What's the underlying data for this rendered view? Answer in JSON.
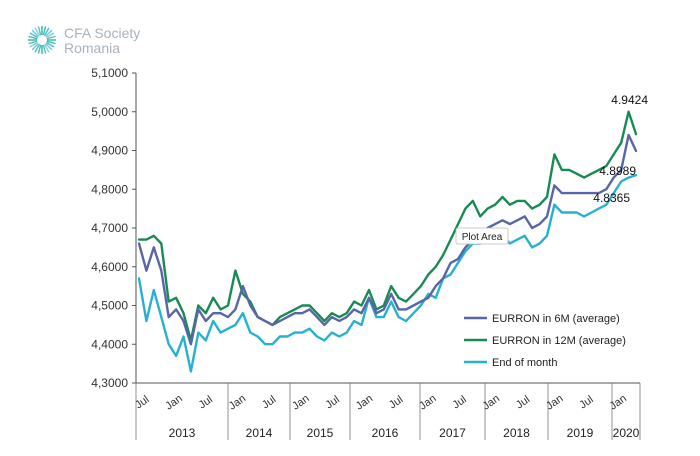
{
  "logo": {
    "line1": "CFA Society",
    "line2": "Romania"
  },
  "chart_data": {
    "type": "line",
    "title": "",
    "xlabel": "",
    "ylabel": "",
    "ylim": [
      4.3,
      5.1
    ],
    "y_ticks": [
      "4,3000",
      "4,4000",
      "4,5000",
      "4,6000",
      "4,7000",
      "4,8000",
      "4,9000",
      "5,0000",
      "5,1000"
    ],
    "month_ticks": [
      "Jul",
      "Jan",
      "Jul",
      "Jan",
      "Jul",
      "Jan",
      "Jul",
      "Jan",
      "Jul",
      "Jan",
      "Jul",
      "Jan",
      "Jul",
      "Jan",
      "Jul",
      "Jan"
    ],
    "year_labels": [
      "2013",
      "2014",
      "2015",
      "2016",
      "2017",
      "2018",
      "2019",
      "2020"
    ],
    "grid": false,
    "legend_position": "right",
    "tooltip": "Plot Area",
    "annotations": [
      "4.9424",
      "4.8989",
      "4.8365"
    ],
    "colors": {
      "s6m": "#5865a8",
      "s12m": "#1a8a55",
      "eom": "#27b1d0",
      "axis": "#555555"
    },
    "series": [
      {
        "name": "EURRON in 6M (average)",
        "color": "#5865a8",
        "values": [
          4.66,
          4.59,
          4.65,
          4.59,
          4.47,
          4.49,
          4.46,
          4.4,
          4.49,
          4.46,
          4.48,
          4.48,
          4.47,
          4.49,
          4.55,
          4.5,
          4.47,
          4.46,
          4.45,
          4.46,
          4.47,
          4.48,
          4.48,
          4.49,
          4.47,
          4.45,
          4.47,
          4.46,
          4.47,
          4.49,
          4.48,
          4.52,
          4.48,
          4.49,
          4.53,
          4.49,
          4.49,
          4.5,
          4.51,
          4.52,
          4.55,
          4.57,
          4.61,
          4.62,
          4.65,
          4.67,
          4.68,
          4.7,
          4.71,
          4.72,
          4.71,
          4.72,
          4.73,
          4.7,
          4.71,
          4.73,
          4.81,
          4.79,
          4.79,
          4.79,
          4.79,
          4.79,
          4.79,
          4.8,
          4.83,
          4.85,
          4.94,
          4.8989
        ]
      },
      {
        "name": "EURRON in 12M (average)",
        "color": "#1a8a55",
        "values": [
          4.67,
          4.67,
          4.68,
          4.66,
          4.51,
          4.52,
          4.48,
          4.41,
          4.5,
          4.48,
          4.52,
          4.49,
          4.5,
          4.59,
          4.53,
          4.51,
          4.47,
          4.46,
          4.45,
          4.47,
          4.48,
          4.49,
          4.5,
          4.5,
          4.48,
          4.46,
          4.48,
          4.47,
          4.48,
          4.51,
          4.5,
          4.54,
          4.49,
          4.5,
          4.55,
          4.52,
          4.51,
          4.53,
          4.55,
          4.58,
          4.6,
          4.63,
          4.67,
          4.71,
          4.75,
          4.77,
          4.73,
          4.75,
          4.76,
          4.78,
          4.76,
          4.77,
          4.77,
          4.75,
          4.76,
          4.78,
          4.89,
          4.85,
          4.85,
          4.84,
          4.83,
          4.84,
          4.85,
          4.86,
          4.89,
          4.92,
          5.0,
          4.9424
        ]
      },
      {
        "name": "End of month",
        "color": "#27b1d0",
        "values": [
          4.57,
          4.46,
          4.54,
          4.47,
          4.4,
          4.37,
          4.42,
          4.33,
          4.43,
          4.41,
          4.46,
          4.43,
          4.44,
          4.45,
          4.48,
          4.43,
          4.42,
          4.4,
          4.4,
          4.42,
          4.42,
          4.43,
          4.43,
          4.44,
          4.42,
          4.41,
          4.43,
          4.42,
          4.43,
          4.46,
          4.45,
          4.52,
          4.47,
          4.47,
          4.51,
          4.47,
          4.46,
          4.48,
          4.5,
          4.53,
          4.52,
          4.57,
          4.58,
          4.61,
          4.64,
          4.66,
          4.66,
          4.68,
          4.67,
          4.68,
          4.66,
          4.67,
          4.68,
          4.65,
          4.66,
          4.68,
          4.76,
          4.74,
          4.74,
          4.74,
          4.73,
          4.74,
          4.75,
          4.76,
          4.79,
          4.82,
          4.83,
          4.8365
        ]
      }
    ]
  }
}
